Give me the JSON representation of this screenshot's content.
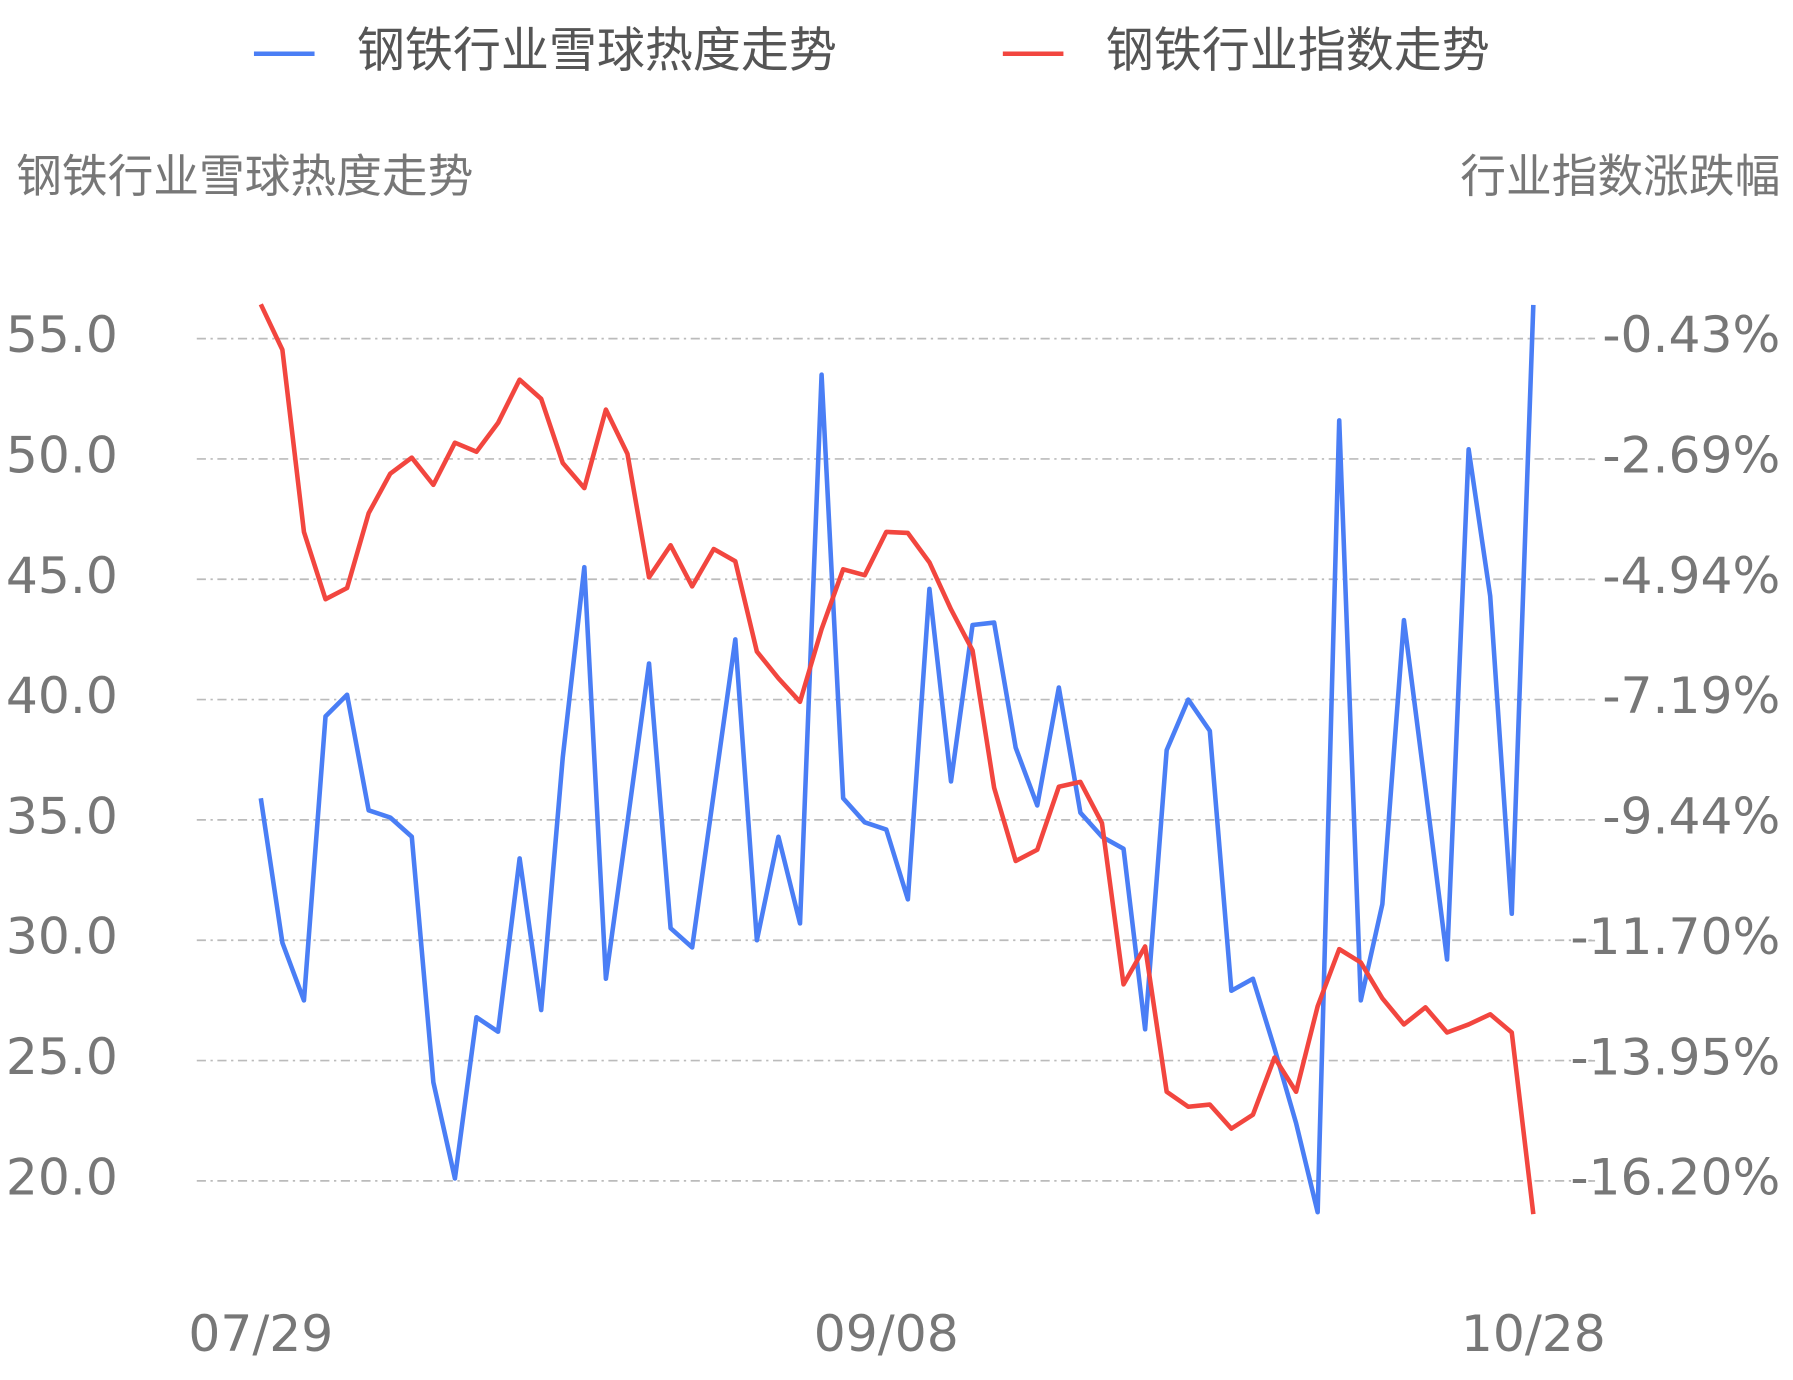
{
  "chart_data": {
    "type": "line",
    "y_label": "钢铁行业雪球热度走势",
    "y2_label": "行业指数涨跌幅",
    "categories": [
      "07/29",
      null,
      null,
      null,
      null,
      null,
      null,
      null,
      null,
      null,
      null,
      null,
      null,
      null,
      null,
      null,
      null,
      null,
      null,
      null,
      null,
      null,
      null,
      null,
      null,
      null,
      null,
      null,
      null,
      "09/08",
      null,
      null,
      null,
      null,
      null,
      null,
      null,
      null,
      null,
      null,
      null,
      null,
      null,
      null,
      null,
      null,
      null,
      null,
      null,
      null,
      null,
      null,
      null,
      null,
      null,
      null,
      null,
      null,
      null,
      "10/28"
    ],
    "series": [
      {
        "name": "钢铁行业雪球热度走势",
        "color": "#4a7ef5",
        "axis": "y",
        "values": [
          35.9,
          29.9,
          27.5,
          39.3,
          40.2,
          35.4,
          35.1,
          34.3,
          24.1,
          20.1,
          26.8,
          26.2,
          33.4,
          27.1,
          37.6,
          45.5,
          28.4,
          34.9,
          41.5,
          30.5,
          29.7,
          36.1,
          42.5,
          30.0,
          34.3,
          30.7,
          53.5,
          35.9,
          34.9,
          34.6,
          31.7,
          44.6,
          36.6,
          43.1,
          43.2,
          38.0,
          35.6,
          40.5,
          35.3,
          34.3,
          33.8,
          26.3,
          37.9,
          40.0,
          38.7,
          27.9,
          28.4,
          25.5,
          22.4,
          18.7,
          51.6,
          27.5,
          31.5,
          43.3,
          36.3,
          29.2,
          50.4,
          44.3,
          31.1,
          56.4
        ]
      },
      {
        "name": "钢铁行业指数走势",
        "color": "#f2463f",
        "axis": "y2",
        "values": [
          0.21,
          -0.64,
          -4.05,
          -5.31,
          -5.1,
          -3.7,
          -2.96,
          -2.66,
          -3.17,
          -2.38,
          -2.55,
          -2.01,
          -1.2,
          -1.56,
          -2.76,
          -3.23,
          -1.76,
          -2.59,
          -4.9,
          -4.3,
          -5.07,
          -4.37,
          -4.6,
          -6.29,
          -6.79,
          -7.23,
          -5.87,
          -4.75,
          -4.86,
          -4.05,
          -4.07,
          -4.62,
          -5.5,
          -6.27,
          -8.84,
          -10.21,
          -10.0,
          -8.82,
          -8.73,
          -9.5,
          -12.52,
          -11.81,
          -14.53,
          -14.81,
          -14.77,
          -15.22,
          -14.96,
          -13.89,
          -14.53,
          -12.93,
          -11.86,
          -12.11,
          -12.78,
          -13.27,
          -12.95,
          -13.42,
          -13.27,
          -13.08,
          -13.42,
          -16.82
        ]
      }
    ],
    "ylim": [
      17,
      58
    ],
    "yticks": [
      {
        "value": 20,
        "label": "20.0"
      },
      {
        "value": 25,
        "label": "25.0"
      },
      {
        "value": 30,
        "label": "30.0"
      },
      {
        "value": 35,
        "label": "35.0"
      },
      {
        "value": 40,
        "label": "40.0"
      },
      {
        "value": 45,
        "label": "45.0"
      },
      {
        "value": 50,
        "label": "50.0"
      },
      {
        "value": 55,
        "label": "55.0"
      }
    ],
    "y2lim": [
      -17.55,
      0.92
    ],
    "y2ticks": [
      {
        "value": -16.2,
        "label": "-16.20%"
      },
      {
        "value": -13.95,
        "label": "-13.95%"
      },
      {
        "value": -11.7,
        "label": "-11.70%"
      },
      {
        "value": -9.44,
        "label": "-9.44%"
      },
      {
        "value": -7.19,
        "label": "-7.19%"
      },
      {
        "value": -4.94,
        "label": "-4.94%"
      },
      {
        "value": -2.69,
        "label": "-2.69%"
      },
      {
        "value": -0.43,
        "label": "-0.43%"
      }
    ],
    "grid": true,
    "legend": "top"
  }
}
